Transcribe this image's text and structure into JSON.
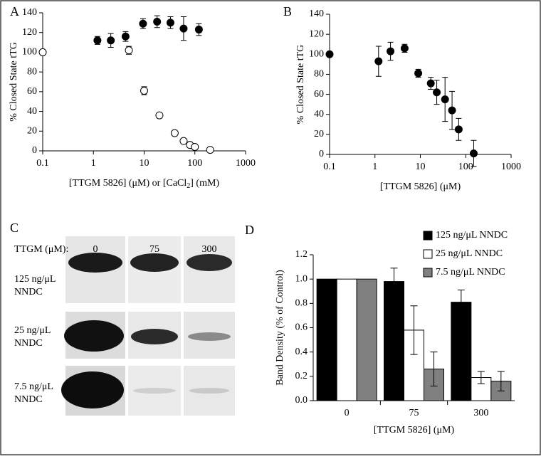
{
  "chart_data": [
    {
      "panel": "A",
      "type": "scatter",
      "ylabel": "% Closed State tTG",
      "xlabel_parts": [
        "[TTGM  5826]  (μM)  or  [CaCl",
        "2",
        "]  (mM)"
      ],
      "xscale": "log",
      "xlim": [
        0.1,
        1000
      ],
      "xticks": [
        0.1,
        1,
        10,
        100,
        1000
      ],
      "ylim": [
        0,
        140
      ],
      "yticks": [
        0,
        20,
        40,
        60,
        80,
        100,
        120,
        140
      ],
      "series": [
        {
          "color": "#000000",
          "x": [
            1.2,
            2.2,
            4.3,
            9.5,
            18,
            33,
            60,
            120
          ],
          "values": [
            112,
            112,
            116,
            129,
            131,
            130,
            124,
            123
          ],
          "errors": [
            4,
            7,
            5,
            5,
            6,
            6,
            12,
            6
          ]
        },
        {
          "color": "#ffffff",
          "x": [
            0.1,
            5,
            10,
            20,
            40,
            60,
            80,
            100,
            200
          ],
          "values": [
            100,
            102,
            61,
            36,
            18,
            10,
            6,
            4,
            1
          ],
          "errors": [
            null,
            4,
            4,
            null,
            2,
            null,
            null,
            null,
            null
          ]
        }
      ]
    },
    {
      "panel": "B",
      "type": "scatter",
      "ylabel": "% Closed State tTG",
      "xlabel_parts": [
        "[TTGM  5826]  (μM)"
      ],
      "xscale": "log",
      "xlim": [
        0.1,
        1000
      ],
      "xticks": [
        0.1,
        1,
        10,
        100,
        1000
      ],
      "ylim": [
        0,
        140
      ],
      "yticks": [
        0,
        20,
        40,
        60,
        80,
        100,
        120,
        140
      ],
      "series": [
        {
          "color": "#000000",
          "x": [
            0.1,
            1.2,
            2.2,
            4.5,
            9,
            17,
            23,
            35,
            50,
            70,
            150
          ],
          "values": [
            100,
            93,
            103,
            106,
            81,
            71,
            62,
            55,
            44,
            25,
            1
          ],
          "errors": [
            null,
            15,
            9,
            4,
            4,
            6,
            12,
            22,
            19,
            11,
            13
          ]
        }
      ]
    },
    {
      "panel": "D",
      "type": "bar",
      "ylabel": "Band Density (% of  Control)",
      "xlabel_parts": [
        "[TTGM  5826]  (μM)"
      ],
      "categories": [
        "0",
        "75",
        "300"
      ],
      "ylim": [
        0,
        1.2
      ],
      "yticks": [
        {
          "value": 0,
          "label": "0.0"
        },
        0.2,
        0.4,
        0.6,
        0.8,
        {
          "value": 1,
          "label": "1.0"
        },
        1.2
      ],
      "series": [
        {
          "name": "125 ng/μL NNDC",
          "color": "#000000",
          "values": [
            1.0,
            0.98,
            0.81
          ],
          "errors": [
            null,
            0.11,
            0.1
          ]
        },
        {
          "name": "25 ng/μL NNDC",
          "color": "#ffffff",
          "values": [
            1.0,
            0.58,
            0.19
          ],
          "errors": [
            null,
            0.2,
            0.05
          ]
        },
        {
          "name": "7.5 ng/μL NNDC",
          "color": "#808080",
          "values": [
            1.0,
            0.26,
            0.16
          ],
          "errors": [
            null,
            0.14,
            0.08
          ]
        }
      ]
    }
  ],
  "blot": {
    "panel": "C",
    "header": "TTGM (μM):",
    "lanes": [
      "0",
      "75",
      "300"
    ],
    "rows": [
      [
        "125 ng/μL",
        "NNDC"
      ],
      [
        "25 ng/μL",
        "NNDC"
      ],
      [
        "7.5 ng/μL",
        "NNDC"
      ]
    ]
  }
}
